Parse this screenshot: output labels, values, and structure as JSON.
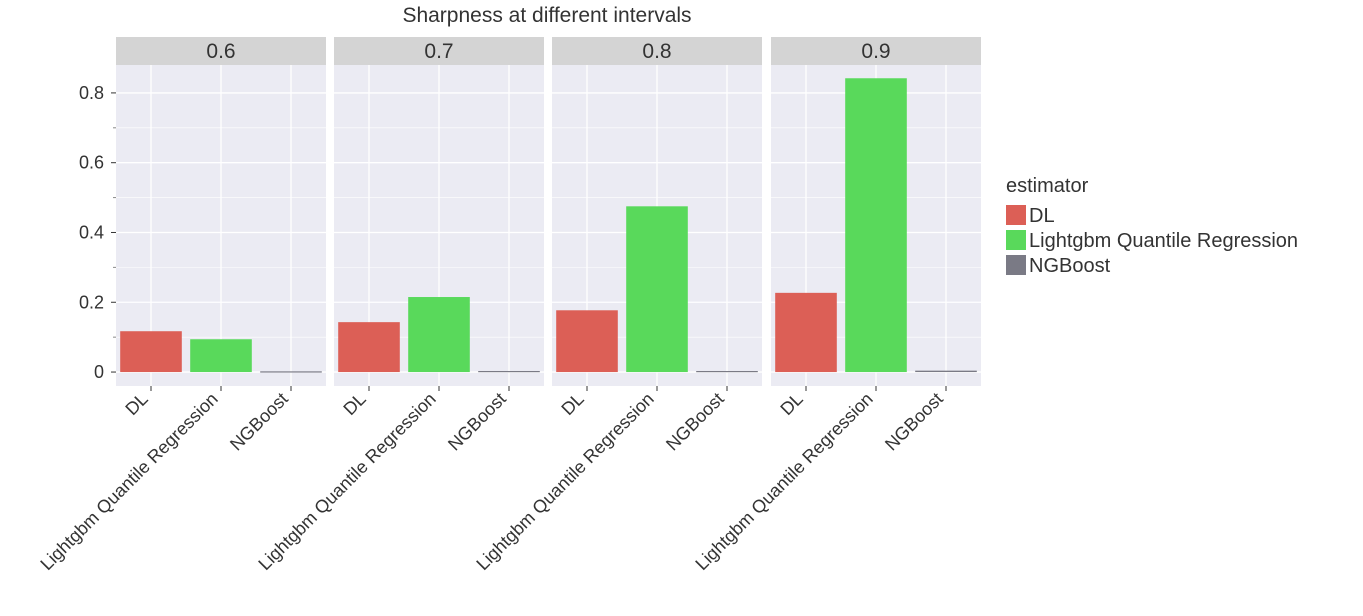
{
  "chart_data": {
    "type": "bar",
    "title": "Sharpness at different intervals",
    "xlabel": "",
    "ylabel": "",
    "ylim": [
      -0.04,
      0.88
    ],
    "yticks": [
      0,
      0.2,
      0.4,
      0.6,
      0.8
    ],
    "ytick_labels": [
      "0",
      "0.2",
      "0.4",
      "0.6",
      "0.8"
    ],
    "categories": [
      "DL",
      "Lightgbm Quantile Regression",
      "NGBoost"
    ],
    "facets": [
      {
        "label": "0.6",
        "values": [
          0.117,
          0.094,
          0.002
        ]
      },
      {
        "label": "0.7",
        "values": [
          0.143,
          0.215,
          0.003
        ]
      },
      {
        "label": "0.8",
        "values": [
          0.177,
          0.475,
          0.003
        ]
      },
      {
        "label": "0.9",
        "values": [
          0.227,
          0.842,
          0.004
        ]
      }
    ],
    "legend": {
      "title": "estimator",
      "position": "right",
      "entries": [
        {
          "label": "DL",
          "color": "#dc5f56"
        },
        {
          "label": "Lightgbm Quantile Regression",
          "color": "#59d95b"
        },
        {
          "label": "NGBoost",
          "color": "#7a7a85"
        }
      ]
    },
    "grid": true,
    "colors": {
      "panel": "#ebebf3",
      "strip": "#d4d4d4",
      "grid": "#ffffff"
    }
  }
}
